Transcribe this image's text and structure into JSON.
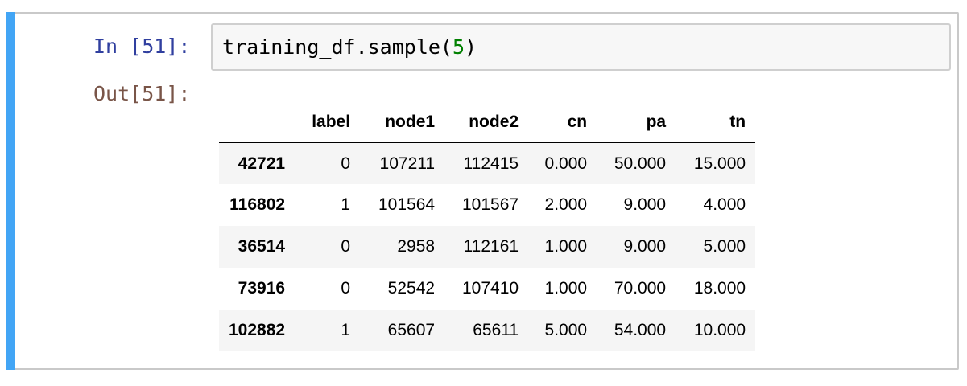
{
  "cell": {
    "in_prompt": "In [51]:",
    "out_prompt": "Out[51]:",
    "code": {
      "before": "training_df.sample(",
      "arg": "5",
      "after": ")"
    }
  },
  "colors": {
    "active_bar": "#42a5f5",
    "in_prompt": "#303f9f",
    "out_prompt": "#795548",
    "code_number": "#008000"
  },
  "table": {
    "columns": [
      "",
      "label",
      "node1",
      "node2",
      "cn",
      "pa",
      "tn"
    ],
    "rows": [
      {
        "index": "42721",
        "cells": [
          "0",
          "107211",
          "112415",
          "0.000",
          "50.000",
          "15.000"
        ]
      },
      {
        "index": "116802",
        "cells": [
          "1",
          "101564",
          "101567",
          "2.000",
          "9.000",
          "4.000"
        ]
      },
      {
        "index": "36514",
        "cells": [
          "0",
          "2958",
          "112161",
          "1.000",
          "9.000",
          "5.000"
        ]
      },
      {
        "index": "73916",
        "cells": [
          "0",
          "52542",
          "107410",
          "1.000",
          "70.000",
          "18.000"
        ]
      },
      {
        "index": "102882",
        "cells": [
          "1",
          "65607",
          "65611",
          "5.000",
          "54.000",
          "10.000"
        ]
      }
    ]
  }
}
